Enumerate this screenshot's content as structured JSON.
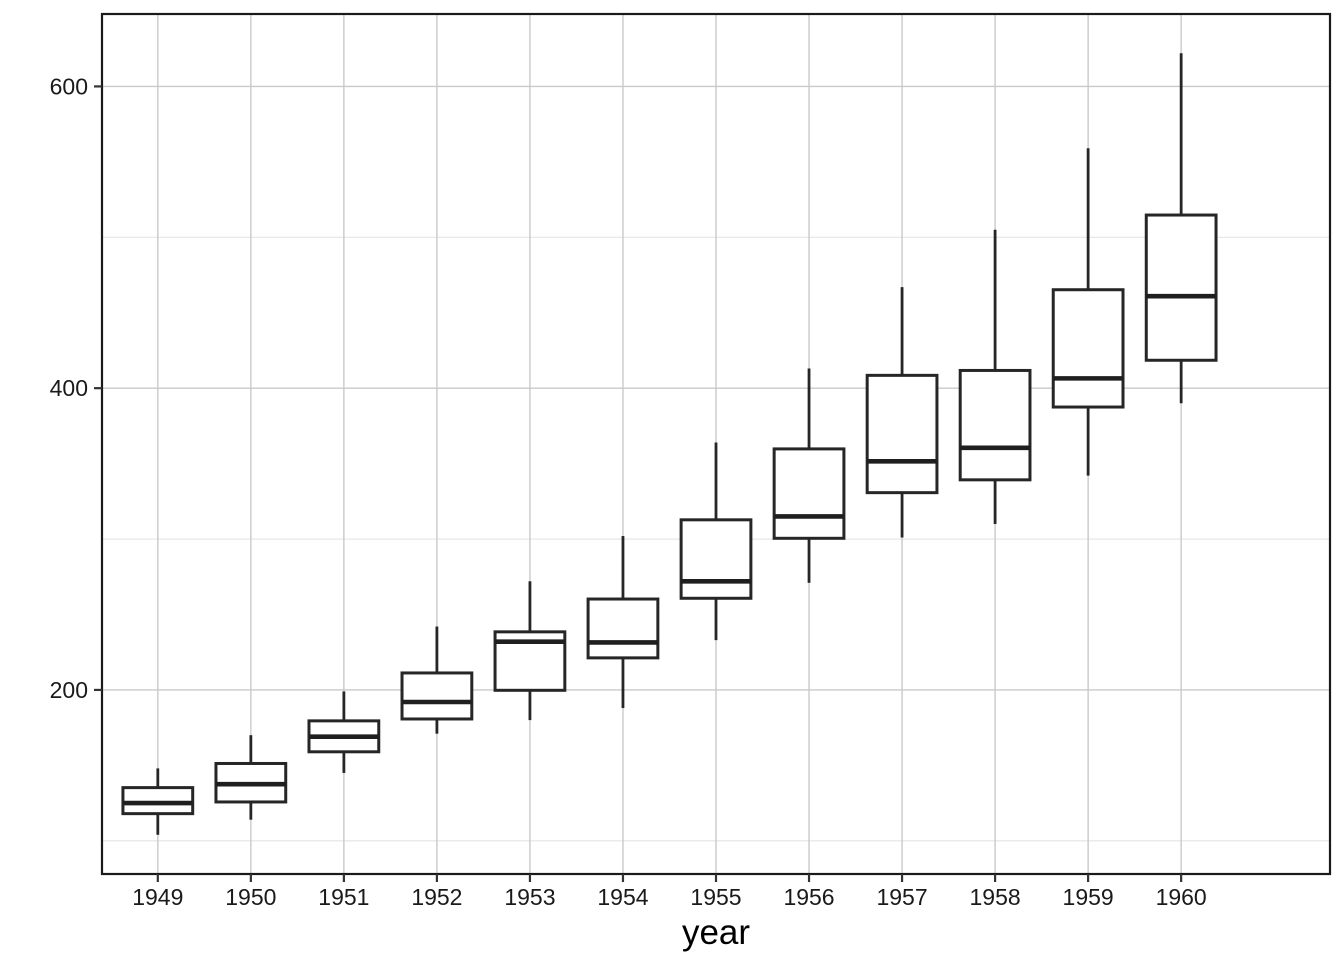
{
  "chart_data": {
    "type": "boxplot",
    "title": "",
    "xlabel": "year",
    "ylabel": "",
    "categories": [
      "1949",
      "1950",
      "1951",
      "1952",
      "1953",
      "1954",
      "1955",
      "1956",
      "1957",
      "1958",
      "1959",
      "1960"
    ],
    "y_major_ticks": [
      200,
      400,
      600
    ],
    "y_tick_labels": [
      "200",
      "400",
      "600"
    ],
    "y_minor_gridlines": [
      100,
      300,
      500
    ],
    "ylim": [
      78,
      648
    ],
    "grid": "major-and-minor",
    "legend_position": "none",
    "boxes": [
      {
        "category": "1949",
        "whisker_low": 104,
        "q1": 118,
        "median": 125,
        "q3": 135.25,
        "whisker_high": 148
      },
      {
        "category": "1950",
        "whisker_low": 114,
        "q1": 125.75,
        "median": 137.5,
        "q3": 151.25,
        "whisker_high": 170
      },
      {
        "category": "1951",
        "whisker_low": 145,
        "q1": 159,
        "median": 169,
        "q3": 179.5,
        "whisker_high": 199
      },
      {
        "category": "1952",
        "whisker_low": 171,
        "q1": 180.75,
        "median": 192,
        "q3": 211.25,
        "whisker_high": 242
      },
      {
        "category": "1953",
        "whisker_low": 180,
        "q1": 199.75,
        "median": 232,
        "q3": 238.5,
        "whisker_high": 272
      },
      {
        "category": "1954",
        "whisker_low": 188,
        "q1": 221.25,
        "median": 231.5,
        "q3": 260.25,
        "whisker_high": 302
      },
      {
        "category": "1955",
        "whisker_low": 233,
        "q1": 260.75,
        "median": 272,
        "q3": 312.75,
        "whisker_high": 364
      },
      {
        "category": "1956",
        "whisker_low": 271,
        "q1": 300.5,
        "median": 315,
        "q3": 359.75,
        "whisker_high": 413
      },
      {
        "category": "1957",
        "whisker_low": 301,
        "q1": 330.75,
        "median": 351.5,
        "q3": 408.5,
        "whisker_high": 467
      },
      {
        "category": "1958",
        "whisker_low": 310,
        "q1": 339.25,
        "median": 360.5,
        "q3": 411.75,
        "whisker_high": 505
      },
      {
        "category": "1959",
        "whisker_low": 342,
        "q1": 387.5,
        "median": 406.5,
        "q3": 465.25,
        "whisker_high": 559
      },
      {
        "category": "1960",
        "whisker_low": 390,
        "q1": 418.5,
        "median": 461,
        "q3": 514.75,
        "whisker_high": 622
      }
    ]
  },
  "colors": {
    "background": "#ffffff",
    "panel_background": "#ffffff",
    "panel_border": "#1a1a1a",
    "grid_major": "#c9c9c9",
    "grid_minor": "#e4e4e4",
    "box_stroke": "#262626",
    "box_fill": "#ffffff",
    "median_stroke": "#1f1f1f",
    "tick_mark": "#333333",
    "axis_text": "#1a1a1a",
    "axis_title": "#000000"
  }
}
